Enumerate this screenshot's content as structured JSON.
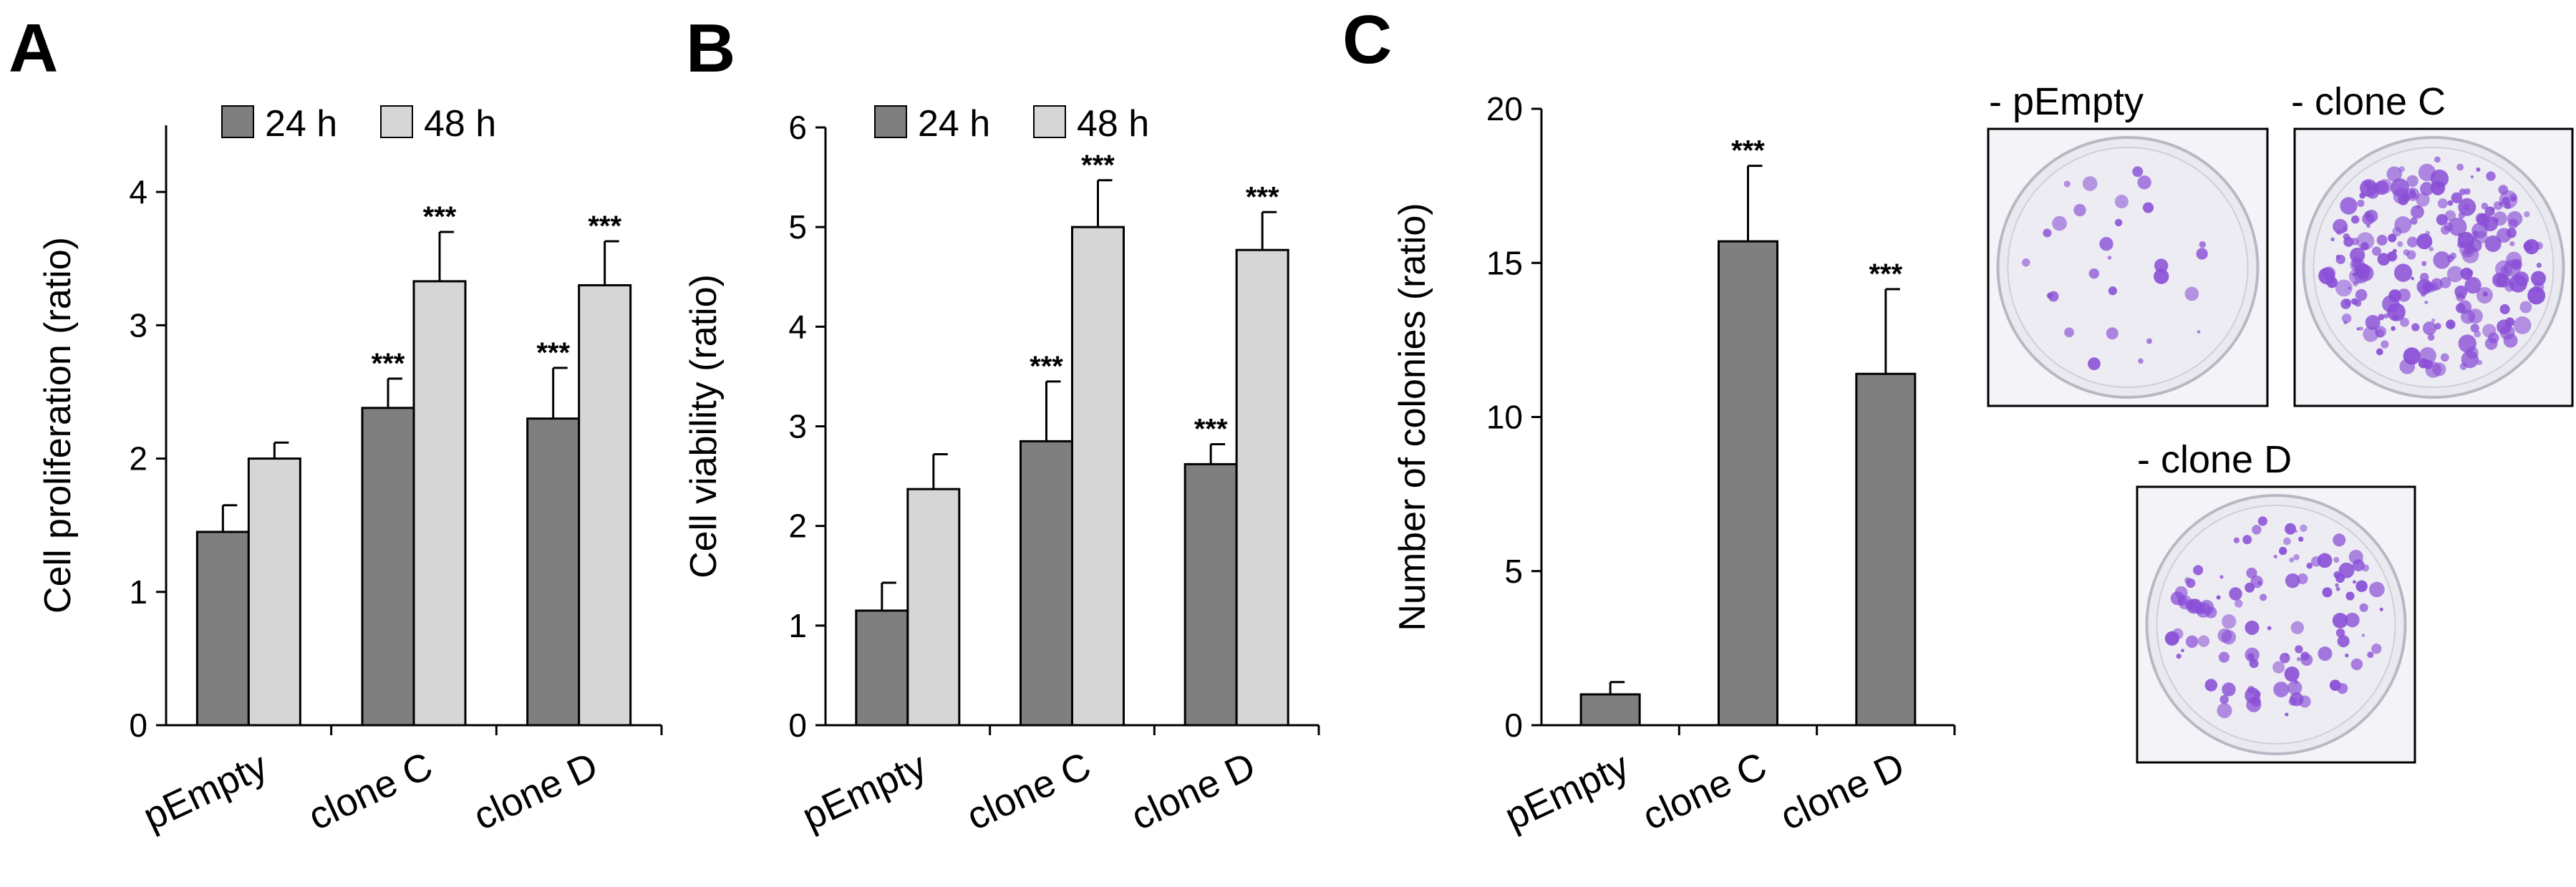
{
  "colors": {
    "dark_bar": "#7f7f7f",
    "light_bar": "#d6d6d6",
    "plate_stain": "#8a4fd6"
  },
  "panels": {
    "A": {
      "letter": "A",
      "chart_data": {
        "type": "bar",
        "ylabel": "Cell proliferation (ratio)",
        "ylim": [
          0,
          4.5
        ],
        "yticks": [
          "0",
          "1",
          "2",
          "3",
          "4"
        ],
        "categories": [
          "pEmpty",
          "clone C",
          "clone D"
        ],
        "legend": [
          "24 h",
          "48 h"
        ],
        "series": [
          {
            "name": "24 h",
            "values": [
              1.45,
              2.38,
              2.3
            ],
            "errors": [
              0.2,
              0.22,
              0.38
            ],
            "annotations": [
              "",
              "***",
              "***"
            ]
          },
          {
            "name": "48 h",
            "values": [
              2.0,
              3.33,
              3.3
            ],
            "errors": [
              0.12,
              0.37,
              0.33
            ],
            "annotations": [
              "",
              "***",
              "***"
            ]
          }
        ]
      }
    },
    "B": {
      "letter": "B",
      "chart_data": {
        "type": "bar",
        "ylabel": "Cell viability (ratio)",
        "ylim": [
          0,
          6
        ],
        "yticks": [
          "0",
          "1",
          "2",
          "3",
          "4",
          "5",
          "6"
        ],
        "categories": [
          "pEmpty",
          "clone C",
          "clone D"
        ],
        "legend": [
          "24 h",
          "48 h"
        ],
        "series": [
          {
            "name": "24 h",
            "values": [
              1.15,
              2.85,
              2.62
            ],
            "errors": [
              0.28,
              0.6,
              0.2
            ],
            "annotations": [
              "",
              "***",
              "***"
            ]
          },
          {
            "name": "48 h",
            "values": [
              2.37,
              5.0,
              4.77
            ],
            "errors": [
              0.35,
              0.47,
              0.38
            ],
            "annotations": [
              "",
              "***",
              "***"
            ]
          }
        ]
      }
    },
    "C": {
      "letter": "C",
      "chart_data": {
        "type": "bar",
        "ylabel": "Number of colonies (ratio)",
        "ylim": [
          0,
          20
        ],
        "yticks": [
          "0",
          "5",
          "10",
          "15",
          "20"
        ],
        "categories": [
          "pEmpty",
          "clone C",
          "clone D"
        ],
        "series": [
          {
            "name": "colonies",
            "values": [
              1.0,
              15.7,
              11.4
            ],
            "errors": [
              0.4,
              2.45,
              2.75
            ],
            "annotations": [
              "",
              "***",
              "***"
            ]
          }
        ]
      },
      "plates": [
        {
          "label": "- pEmpty",
          "density": "sparse"
        },
        {
          "label": "- clone C",
          "density": "dense"
        },
        {
          "label": "- clone D",
          "density": "medium"
        }
      ]
    }
  }
}
